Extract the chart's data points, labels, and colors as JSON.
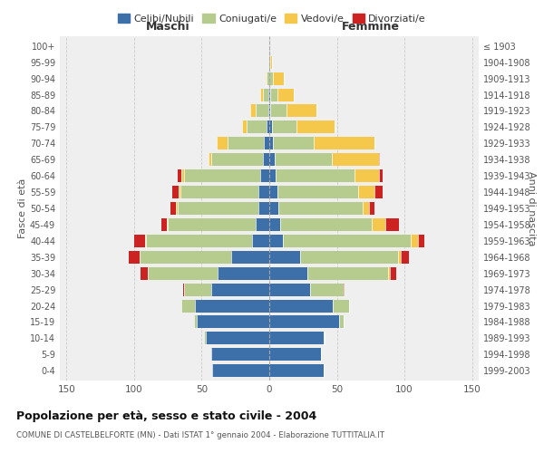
{
  "age_groups": [
    "0-4",
    "5-9",
    "10-14",
    "15-19",
    "20-24",
    "25-29",
    "30-34",
    "35-39",
    "40-44",
    "45-49",
    "50-54",
    "55-59",
    "60-64",
    "65-69",
    "70-74",
    "75-79",
    "80-84",
    "85-89",
    "90-94",
    "95-99",
    "100+"
  ],
  "birth_years": [
    "1999-2003",
    "1994-1998",
    "1989-1993",
    "1984-1988",
    "1979-1983",
    "1974-1978",
    "1969-1973",
    "1964-1968",
    "1959-1963",
    "1954-1958",
    "1949-1953",
    "1944-1948",
    "1939-1943",
    "1934-1938",
    "1929-1933",
    "1924-1928",
    "1919-1923",
    "1914-1918",
    "1909-1913",
    "1904-1908",
    "≤ 1903"
  ],
  "maschi": {
    "celibi": [
      42,
      43,
      47,
      54,
      55,
      43,
      38,
      28,
      13,
      10,
      8,
      8,
      7,
      5,
      4,
      2,
      1,
      1,
      0,
      0,
      0
    ],
    "coniugati": [
      0,
      0,
      1,
      2,
      10,
      20,
      52,
      68,
      78,
      65,
      60,
      58,
      56,
      38,
      27,
      15,
      9,
      4,
      2,
      0,
      0
    ],
    "vedovi": [
      0,
      0,
      0,
      0,
      0,
      0,
      0,
      0,
      1,
      1,
      1,
      1,
      2,
      2,
      8,
      3,
      4,
      2,
      1,
      0,
      0
    ],
    "divorziati": [
      0,
      0,
      0,
      0,
      0,
      1,
      5,
      8,
      8,
      4,
      4,
      5,
      3,
      0,
      0,
      0,
      0,
      0,
      0,
      0,
      0
    ]
  },
  "femmine": {
    "nubili": [
      40,
      38,
      40,
      52,
      47,
      30,
      28,
      23,
      10,
      8,
      7,
      6,
      5,
      4,
      3,
      2,
      1,
      1,
      0,
      0,
      0
    ],
    "coniugate": [
      0,
      0,
      1,
      3,
      12,
      25,
      60,
      72,
      95,
      68,
      62,
      60,
      58,
      42,
      30,
      18,
      12,
      5,
      3,
      1,
      0
    ],
    "vedove": [
      0,
      0,
      0,
      0,
      0,
      0,
      1,
      2,
      5,
      10,
      5,
      12,
      18,
      35,
      45,
      28,
      22,
      12,
      8,
      1,
      0
    ],
    "divorziate": [
      0,
      0,
      0,
      0,
      0,
      1,
      5,
      6,
      5,
      10,
      4,
      6,
      3,
      1,
      0,
      0,
      0,
      0,
      0,
      0,
      0
    ]
  },
  "colors": {
    "celibi_nubili": "#3d6fa8",
    "coniugati": "#b5cc8e",
    "vedovi": "#f5c84c",
    "divorziati": "#cc2222"
  },
  "xlim": 155,
  "title": "Popolazione per età, sesso e stato civile - 2004",
  "subtitle": "COMUNE DI CASTELBELFORTE (MN) - Dati ISTAT 1° gennaio 2004 - Elaborazione TUTTITALIA.IT",
  "xlabel_left": "Maschi",
  "xlabel_right": "Femmine",
  "ylabel_left": "Fasce di età",
  "ylabel_right": "Anni di nascita",
  "legend_labels": [
    "Celibi/Nubili",
    "Coniugati/e",
    "Vedovi/e",
    "Divorziati/e"
  ],
  "background_color": "#ffffff",
  "plot_bg_color": "#efefef",
  "grid_color": "#cccccc"
}
